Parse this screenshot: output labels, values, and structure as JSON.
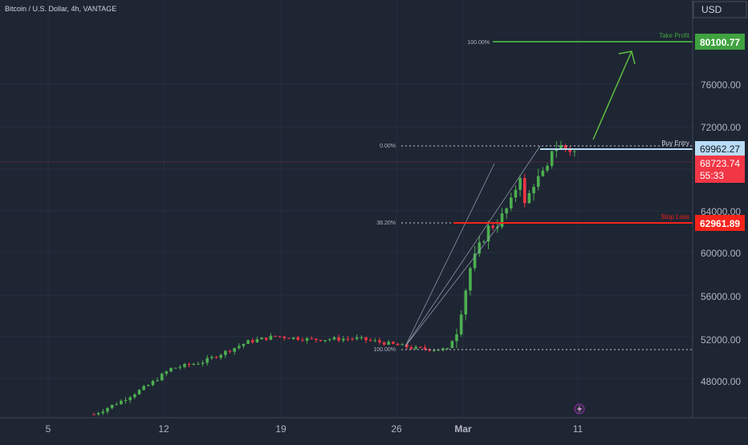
{
  "header": {
    "symbol_title": "Bitcoin / U.S. Dollar, 4h, VANTAGE"
  },
  "price_axis": {
    "currency_label": "USD",
    "ticks": [
      "48000.00",
      "52000.00",
      "56000.00",
      "60000.00",
      "64000.00",
      "72000.00",
      "76000.00"
    ]
  },
  "time_axis": {
    "ticks": [
      "5",
      "12",
      "19",
      "26",
      "Mar",
      "11"
    ]
  },
  "levels": {
    "take_profit": {
      "label": "Take Profit",
      "value": "80100.77",
      "fib_label": "100.00%",
      "color": "#3fa33f"
    },
    "buy_entry": {
      "label": "Buy Entry",
      "value": "69962.27",
      "fib_label": "0.00%",
      "color": "#b9dcf5"
    },
    "current": {
      "value": "68723.74",
      "countdown": "55:33",
      "color": "#f23645"
    },
    "stop_loss": {
      "label": "Stop Loss",
      "value": "62961.89",
      "fib_label": "38.20%",
      "color": "#f7231b"
    },
    "fib_base": {
      "fib_label": "100.00%"
    }
  },
  "colors": {
    "background": "#1e2533",
    "bull": "#22ab94",
    "bull_candle": "#4caf50",
    "bear_candle": "#f23645",
    "grid": "#2a3140",
    "text": "#b2b5be"
  },
  "chart_data": {
    "type": "candlestick",
    "title": "Bitcoin / U.S. Dollar, 4h, VANTAGE",
    "y_range": [
      44800,
      82200
    ],
    "x_labels": [
      "5",
      "12",
      "19",
      "26",
      "Mar",
      "11"
    ],
    "levels": {
      "take_profit": 80100.77,
      "buy_entry": 69962.27,
      "last": 68723.74,
      "stop_loss": 62961.89,
      "fib_base": 50850
    },
    "close_path": [
      [
        0,
        45100
      ],
      [
        6,
        46300
      ],
      [
        12,
        47700
      ],
      [
        17,
        49200
      ],
      [
        24,
        49800
      ],
      [
        34,
        51600
      ],
      [
        40,
        52100
      ],
      [
        48,
        51800
      ],
      [
        58,
        51900
      ],
      [
        64,
        51500
      ],
      [
        71,
        51000
      ],
      [
        78,
        50900
      ],
      [
        80,
        52600
      ],
      [
        83,
        58200
      ],
      [
        85,
        60100
      ],
      [
        87,
        61800
      ],
      [
        89,
        62200
      ],
      [
        92,
        64100
      ],
      [
        94,
        66600
      ],
      [
        95,
        63800
      ],
      [
        97,
        65800
      ],
      [
        100,
        67000
      ],
      [
        101,
        68900
      ],
      [
        103,
        69100
      ],
      [
        106,
        68600
      ]
    ]
  }
}
